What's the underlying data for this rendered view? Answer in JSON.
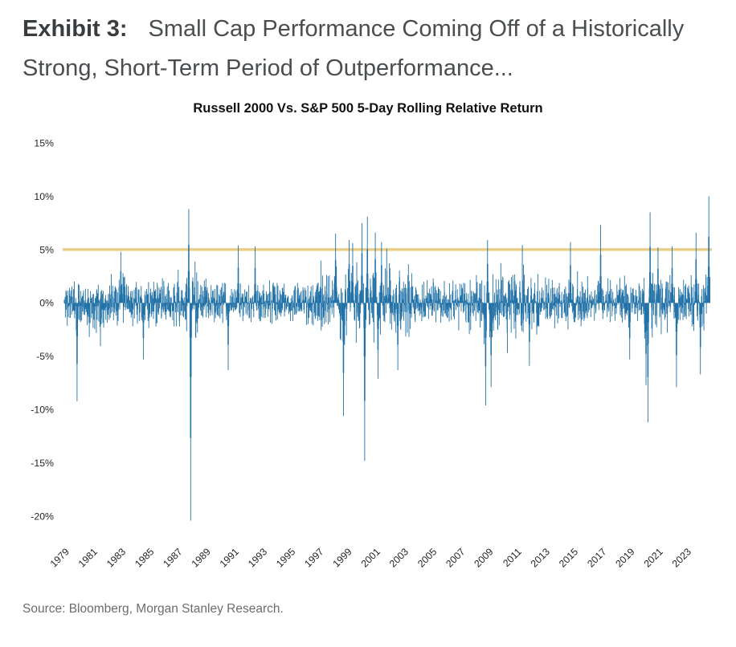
{
  "header": {
    "exhibit_label": "Exhibit 3:",
    "title": "Small Cap Performance Coming Off of a Historically Strong, Short-Term Period of Outperformance..."
  },
  "footer": {
    "source": "Source: Bloomberg, Morgan Stanley Research."
  },
  "chart_data": {
    "type": "bar",
    "title": "Russell 2000 Vs. S&P 500 5-Day Rolling Relative Return",
    "xlabel": "",
    "ylabel": "",
    "y_unit": "%",
    "grid": false,
    "legend": false,
    "ylim": [
      -21.5,
      16
    ],
    "y_tick_values": [
      15,
      10,
      5,
      0,
      -5,
      -10,
      -15,
      -20
    ],
    "y_tick_labels": [
      "15%",
      "10%",
      "5%",
      "0%",
      "-5%",
      "-10%",
      "-15%",
      "-20%"
    ],
    "x_tick_labels": [
      "1979",
      "1981",
      "1983",
      "1985",
      "1987",
      "1989",
      "1991",
      "1993",
      "1995",
      "1997",
      "1999",
      "2001",
      "2003",
      "2005",
      "2007",
      "2009",
      "2011",
      "2013",
      "2015",
      "2017",
      "2019",
      "2021",
      "2023"
    ],
    "x_min_year": 1978.9,
    "x_max_year": 2024.6,
    "points_per_year": 52,
    "threshold_line": {
      "value": 5,
      "color": "#EACD87"
    },
    "colors": {
      "bars": "#2272A8"
    },
    "typical_band_pct": [
      -3,
      3
    ],
    "volatility_eras": [
      {
        "from": 1978.9,
        "to": 1987.5,
        "sigma": 1.05
      },
      {
        "from": 1987.5,
        "to": 1988.4,
        "sigma": 1.3
      },
      {
        "from": 1988.4,
        "to": 1997.0,
        "sigma": 0.9
      },
      {
        "from": 1997.0,
        "to": 2003.5,
        "sigma": 1.5
      },
      {
        "from": 2003.5,
        "to": 2007.5,
        "sigma": 0.95
      },
      {
        "from": 2007.5,
        "to": 2012.5,
        "sigma": 1.35
      },
      {
        "from": 2012.5,
        "to": 2019.8,
        "sigma": 1.05
      },
      {
        "from": 2019.8,
        "to": 2021.3,
        "sigma": 1.45
      },
      {
        "from": 2021.3,
        "to": 2024.7,
        "sigma": 1.3
      }
    ],
    "notable_extremes": [
      {
        "year": 1979.8,
        "value": -9.2
      },
      {
        "year": 1982.9,
        "value": 4.8
      },
      {
        "year": 1984.5,
        "value": -5.3
      },
      {
        "year": 1987.7,
        "value": 8.8
      },
      {
        "year": 1987.85,
        "value": -20.4
      },
      {
        "year": 1990.5,
        "value": -6.3
      },
      {
        "year": 1991.2,
        "value": 5.4
      },
      {
        "year": 1992.4,
        "value": 5.3
      },
      {
        "year": 1998.1,
        "value": 6.5
      },
      {
        "year": 1998.65,
        "value": -10.6
      },
      {
        "year": 1999.05,
        "value": 5.9
      },
      {
        "year": 1999.3,
        "value": 5.6
      },
      {
        "year": 1999.95,
        "value": 7.5
      },
      {
        "year": 2000.15,
        "value": -14.8
      },
      {
        "year": 2000.35,
        "value": 8.1
      },
      {
        "year": 2000.9,
        "value": 6.6
      },
      {
        "year": 2001.1,
        "value": -7.1
      },
      {
        "year": 2001.35,
        "value": 5.7
      },
      {
        "year": 2002.5,
        "value": -6.3
      },
      {
        "year": 2008.7,
        "value": -9.6
      },
      {
        "year": 2008.85,
        "value": 5.9
      },
      {
        "year": 2009.1,
        "value": -7.9
      },
      {
        "year": 2011.8,
        "value": -5.9
      },
      {
        "year": 2014.7,
        "value": 5.7
      },
      {
        "year": 2016.85,
        "value": 7.3
      },
      {
        "year": 2018.9,
        "value": -5.3
      },
      {
        "year": 2020.05,
        "value": -7.7
      },
      {
        "year": 2020.18,
        "value": -11.2
      },
      {
        "year": 2020.35,
        "value": 8.5
      },
      {
        "year": 2020.9,
        "value": 5.2
      },
      {
        "year": 2021.9,
        "value": 5.3
      },
      {
        "year": 2022.2,
        "value": -7.9
      },
      {
        "year": 2023.6,
        "value": 6.6
      },
      {
        "year": 2023.9,
        "value": -6.7
      },
      {
        "year": 2024.5,
        "value": 10.0
      }
    ],
    "seed": 11
  }
}
